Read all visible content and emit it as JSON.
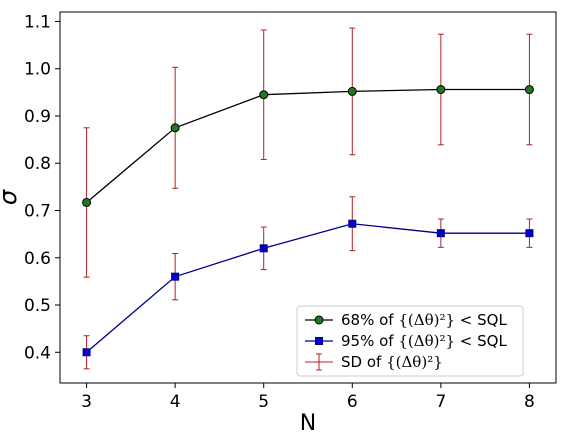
{
  "chart_data": {
    "type": "line",
    "xlabel": "N",
    "ylabel": "σ",
    "x": [
      3,
      4,
      5,
      6,
      7,
      8
    ],
    "xticks": [
      "3",
      "4",
      "5",
      "6",
      "7",
      "8"
    ],
    "xlim": [
      2.7,
      8.3
    ],
    "ylim": [
      0.335,
      1.12
    ],
    "yticks": [
      "0.4",
      "0.5",
      "0.6",
      "0.7",
      "0.8",
      "0.9",
      "1.0",
      "1.1"
    ],
    "grid": false,
    "legend_position": "lower-right",
    "series": [
      {
        "name": "68% of {(Δθ)²} < SQL",
        "color": "#000000",
        "marker": "circle",
        "marker_fill": "#1f7a1f",
        "values": [
          0.717,
          0.875,
          0.945,
          0.952,
          0.956,
          0.956
        ],
        "error": [
          0.158,
          0.128,
          0.137,
          0.134,
          0.117,
          0.117
        ],
        "error_color": "#b22222"
      },
      {
        "name": "95% of {(Δθ)²} < SQL",
        "color": "#00008b",
        "marker": "square",
        "marker_fill": "#0000cd",
        "values": [
          0.4,
          0.56,
          0.62,
          0.672,
          0.652,
          0.652
        ],
        "error": [
          0.035,
          0.049,
          0.045,
          0.057,
          0.03,
          0.03
        ],
        "error_color": "#b22222"
      }
    ],
    "legend": [
      {
        "label_prefix": "68% of ",
        "label_set": "{(Δθ)²}",
        "label_suffix": " < SQL",
        "kind": "circle"
      },
      {
        "label_prefix": "95% of ",
        "label_set": "{(Δθ)²}",
        "label_suffix": " < SQL",
        "kind": "square"
      },
      {
        "label_prefix": "SD of ",
        "label_set": "{(Δθ)²}",
        "label_suffix": "",
        "kind": "errorbar"
      }
    ]
  }
}
